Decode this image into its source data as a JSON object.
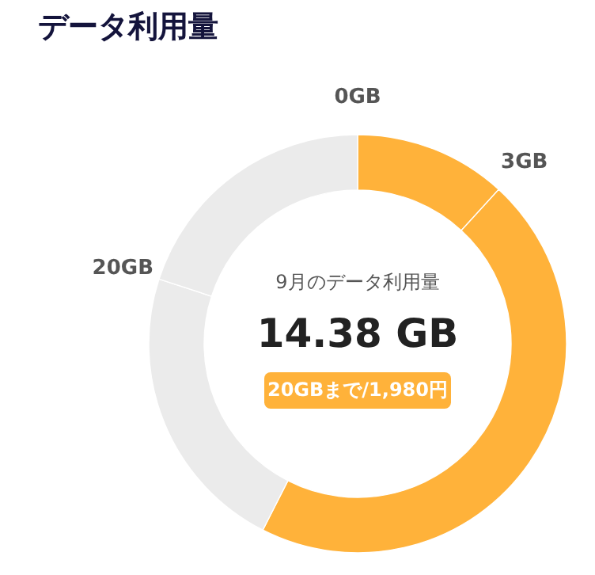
{
  "chart_data": {
    "type": "donut",
    "title": "データ利用量",
    "categories": [
      "0GB",
      "3GB",
      null,
      "20GB"
    ],
    "values": [
      11.8,
      45.7,
      22.5,
      20
    ],
    "colors": [
      "#ffb23a",
      "#ffb23a",
      "#ebebeb",
      "#ebebeb"
    ],
    "annotations": [
      "9月のデータ利用量",
      "14.38 GB",
      "20GBまで/1,980円"
    ]
  }
}
